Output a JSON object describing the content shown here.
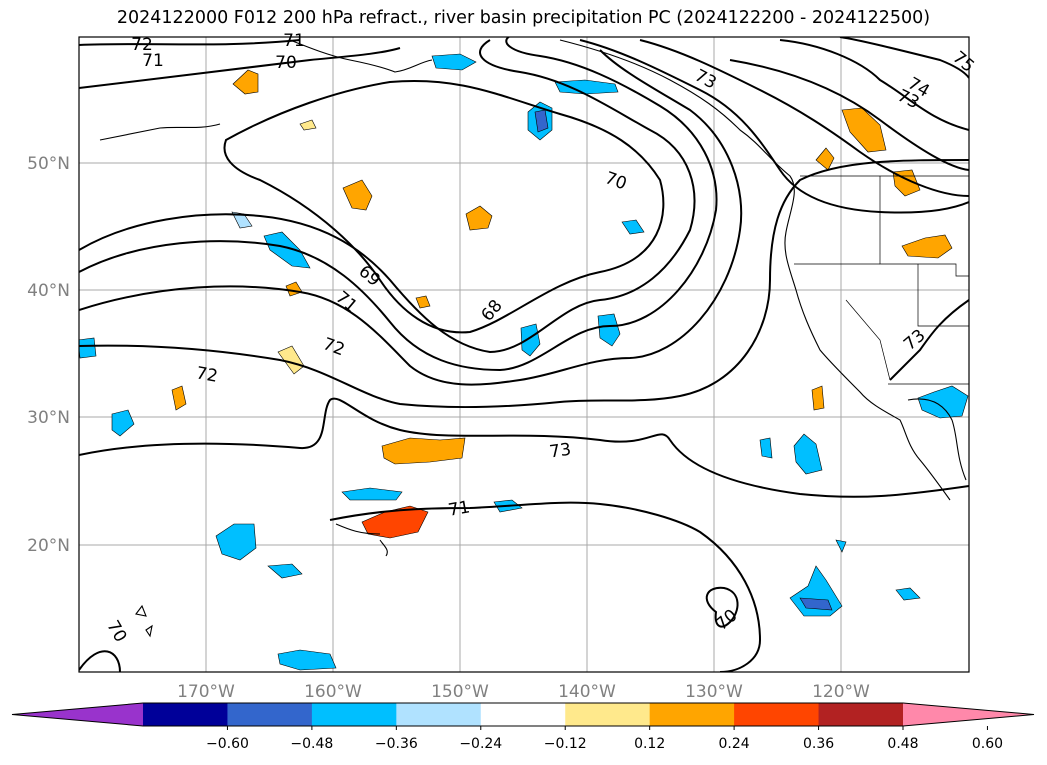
{
  "title": "2024122000 F012 200 hPa refract., river basin precipitation PC (2024122200 - 2024122500)",
  "map": {
    "lat_labels": [
      "50°N",
      "40°N",
      "30°N",
      "20°N"
    ],
    "lon_labels": [
      "170°W",
      "160°W",
      "150°W",
      "140°W",
      "130°W",
      "120°W"
    ],
    "contour_labels": [
      "72",
      "71",
      "71",
      "70",
      "73",
      "74",
      "75",
      "73",
      "70",
      "69",
      "68",
      "71",
      "72",
      "72",
      "73",
      "71",
      "70",
      "70",
      "73"
    ]
  },
  "colorbar": {
    "colors": [
      "#9933cc",
      "#000099",
      "#3366cc",
      "#00bfff",
      "#b0e2ff",
      "#ffffff",
      "#ffe98c",
      "#ffa500",
      "#ff4500",
      "#b22222",
      "#ff88aa"
    ],
    "tick_labels": [
      "−0.60",
      "−0.48",
      "−0.36",
      "−0.24",
      "−0.12",
      "0.12",
      "0.24",
      "0.36",
      "0.48",
      "0.60"
    ]
  }
}
